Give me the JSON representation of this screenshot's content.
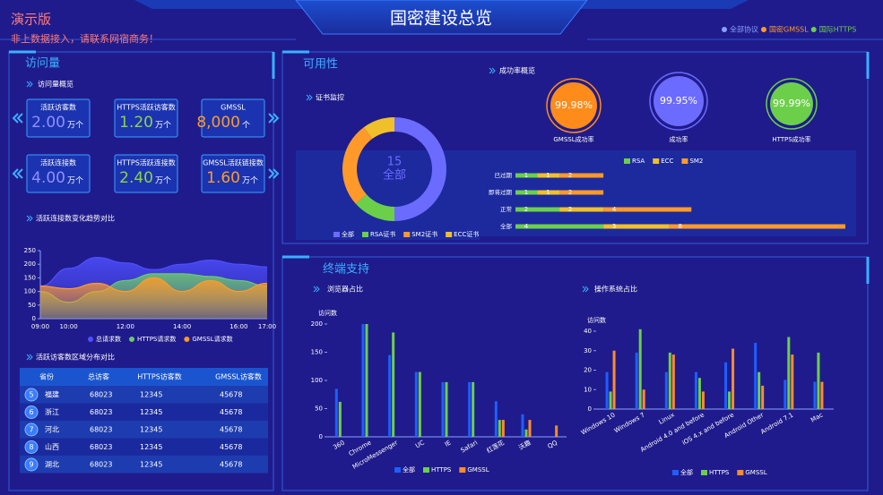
{
  "header": {
    "title": "国密建设总览",
    "watermark": "演示版",
    "notice": "非上数据接入，请联系网宿商务！",
    "legend": [
      {
        "name": "全部协议",
        "color": "#8aa0ff"
      },
      {
        "name": "国密GMSSL",
        "color": "#ff9a2a"
      },
      {
        "name": "国际HTTPS",
        "color": "#6ccf4a"
      }
    ]
  },
  "visits": {
    "title": "访问量",
    "overview_title": "访问量概览",
    "table_title": "活跃访客数区域分布对比",
    "cards": [
      {
        "label": "活跃访客数",
        "value": "2.00",
        "unit": "万个",
        "color": "#8f8fff"
      },
      {
        "label": "HTTPS活跃访客数",
        "value": "1.20",
        "unit": "万个",
        "color": "#8bd34a"
      },
      {
        "label": "GMSSL",
        "value": "8,000",
        "unit": "个",
        "color": "#ff9a2a"
      },
      {
        "label": "活跃连接数",
        "value": "4.00",
        "unit": "万个",
        "color": "#8f8fff"
      },
      {
        "label": "HTTPS活跃连接数",
        "value": "2.40",
        "unit": "万个",
        "color": "#8bd34a"
      },
      {
        "label": "GMSSL活跃链接数",
        "value": "1.60",
        "unit": "万个",
        "color": "#ff9a2a"
      }
    ]
  },
  "table": {
    "columns": [
      "省份",
      "总访客",
      "HTTPS访客数",
      "GMSSL访客数"
    ],
    "rows": [
      [
        "5",
        "福建",
        "68023",
        "12345",
        "45678"
      ],
      [
        "6",
        "浙江",
        "68023",
        "12345",
        "45678"
      ],
      [
        "7",
        "河北",
        "68023",
        "12345",
        "45678"
      ],
      [
        "8",
        "山西",
        "68023",
        "12345",
        "45678"
      ],
      [
        "9",
        "湖北",
        "68023",
        "12345",
        "45678"
      ]
    ]
  },
  "availability": {
    "title": "可用性"
  },
  "terminal": {
    "title": "终端支持"
  },
  "chart_data": [
    {
      "type": "area",
      "title": "活跃连接数变化趋势对比",
      "categories": [
        "09:00",
        "10:00",
        null,
        "12:00",
        null,
        "14:00",
        null,
        "16:00",
        "17:00"
      ],
      "series": [
        {
          "name": "总请求数",
          "color": "#4f4fff",
          "values": [
            120,
            185,
            225,
            205,
            180,
            200,
            215,
            200,
            190
          ]
        },
        {
          "name": "HTTPS请求数",
          "color": "#6cc96b",
          "values": [
            100,
            60,
            100,
            140,
            165,
            165,
            155,
            140,
            120
          ]
        },
        {
          "name": "GMSSL请求数",
          "color": "#ff9a2a",
          "values": [
            120,
            110,
            130,
            100,
            150,
            100,
            140,
            100,
            130
          ]
        }
      ],
      "ylim": [
        0,
        250
      ],
      "yticks": [
        0,
        50,
        100,
        150,
        200,
        250
      ]
    },
    {
      "type": "donut",
      "title": "证书监控",
      "categories": [
        "全部",
        "RSA证书",
        "SM2证书",
        "ECC证书"
      ],
      "values": [
        15,
        4,
        8,
        3
      ],
      "colors": [
        "#6b6bff",
        "#6ccf4a",
        "#ff9a2a",
        "#f0c02a"
      ]
    },
    {
      "type": "gauge",
      "title": "成功率概览",
      "categories": [
        "GMSSL成功率",
        "成功率",
        "HTTPS成功率"
      ],
      "values": [
        99.98,
        99.95,
        99.99
      ],
      "value_labels": [
        "99.98%",
        "99.95%",
        "99.99%"
      ],
      "colors": [
        "#ff8c1a",
        "#6b6bff",
        "#6ccf4a"
      ]
    },
    {
      "type": "bar",
      "orientation": "horizontal",
      "stacked": true,
      "categories": [
        "已过期",
        "即将过期",
        "正常",
        "全部"
      ],
      "series": [
        {
          "name": "RSA",
          "color": "#6ccf4a",
          "values": [
            1,
            1,
            2,
            4
          ]
        },
        {
          "name": "ECC",
          "color": "#f0c02a",
          "values": [
            1,
            1,
            2,
            3
          ]
        },
        {
          "name": "SM2",
          "color": "#ff9a2a",
          "values": [
            2,
            2,
            4,
            8
          ]
        }
      ]
    },
    {
      "type": "bar",
      "title": "浏览器占比",
      "y_label": "访问数",
      "categories": [
        "360",
        "Chrome",
        "MicroMessenger",
        "UC",
        "IE",
        "Safari",
        "红莲花",
        "沃趣",
        "QQ"
      ],
      "series": [
        {
          "name": "全部",
          "color": "#1f5fff",
          "values": [
            85,
            200,
            145,
            115,
            97,
            97,
            63,
            40,
            0
          ]
        },
        {
          "name": "HTTPS",
          "color": "#6ccf4a",
          "values": [
            62,
            200,
            185,
            115,
            97,
            97,
            30,
            13,
            0
          ]
        },
        {
          "name": "GMSSL",
          "color": "#ff8c2a",
          "values": [
            0,
            0,
            0,
            0,
            0,
            0,
            30,
            30,
            20
          ]
        }
      ],
      "ylim": [
        0,
        200
      ],
      "yticks": [
        0,
        50,
        100,
        150,
        200
      ]
    },
    {
      "type": "bar",
      "title": "操作系统占比",
      "y_label": "访问数",
      "categories": [
        "Windows 10",
        "Windows 7",
        "Linux",
        "Android 4.0 and before",
        "iOS 4.x and before",
        "Android Other",
        "Android 7.1",
        "Mac"
      ],
      "series": [
        {
          "name": "全部",
          "color": "#1f5fff",
          "values": [
            19,
            29,
            19,
            19,
            24,
            34,
            15,
            14
          ]
        },
        {
          "name": "HTTPS",
          "color": "#6ccf4a",
          "values": [
            9,
            41,
            29,
            16,
            9,
            19,
            37,
            29
          ]
        },
        {
          "name": "GMSSL",
          "color": "#ff8c2a",
          "values": [
            30,
            10,
            28,
            9,
            31,
            12,
            28,
            14
          ]
        }
      ],
      "ylim": [
        0,
        40
      ],
      "yticks": [
        0,
        10,
        20,
        30,
        40
      ]
    }
  ]
}
